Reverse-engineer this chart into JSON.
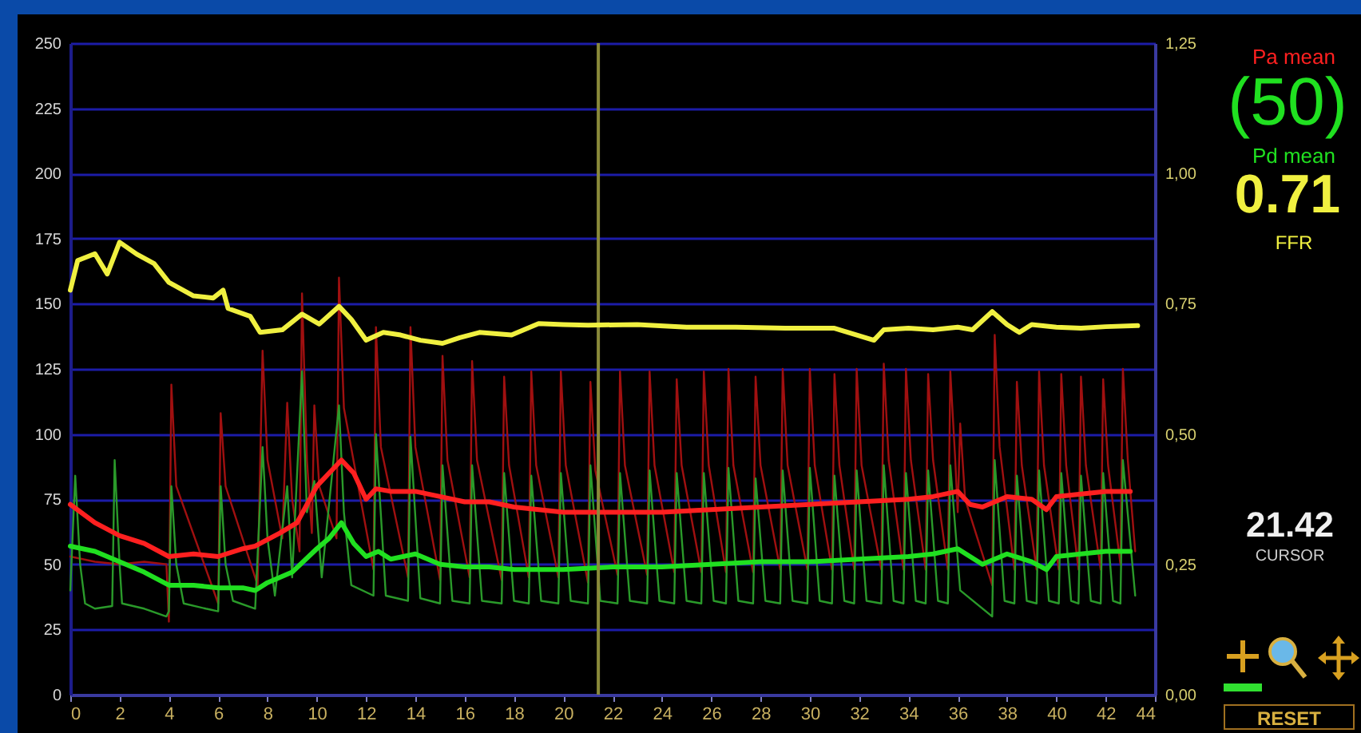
{
  "chart_data": {
    "type": "line",
    "xlim": [
      0,
      44
    ],
    "xticks": [
      0,
      2,
      4,
      6,
      8,
      10,
      12,
      14,
      16,
      18,
      20,
      22,
      24,
      26,
      28,
      30,
      32,
      34,
      36,
      38,
      40,
      42,
      44
    ],
    "ylim": [
      0,
      250
    ],
    "yticks": [
      0,
      25,
      50,
      75,
      100,
      125,
      150,
      175,
      200,
      225,
      250
    ],
    "y2lim": [
      0,
      1.25
    ],
    "y2ticks": [
      {
        "value": 0,
        "label": "0,00"
      },
      {
        "value": 0.25,
        "label": "0,25"
      },
      {
        "value": 0.5,
        "label": "0,50"
      },
      {
        "value": 0.75,
        "label": "0,75"
      },
      {
        "value": 1,
        "label": "1,00"
      },
      {
        "value": 1.25,
        "label": "1,25"
      }
    ],
    "grid": "y",
    "series": [
      {
        "color": "#a01010",
        "x": [
          0,
          1,
          2,
          3,
          3.9,
          4.0,
          4.1,
          4.3,
          6.0,
          6.1,
          6.3,
          7.6,
          7.8,
          8.0,
          8.6,
          8.8,
          9.0,
          9.3,
          9.4,
          9.6,
          9.8,
          9.9,
          10.1,
          10.8,
          10.9,
          11.1,
          12.3,
          12.4,
          12.6,
          13.7,
          13.8,
          14.0,
          15.0,
          15.1,
          15.3,
          16.2,
          16.3,
          16.5,
          17.5,
          17.6,
          17.8,
          18.6,
          18.7,
          18.9,
          19.8,
          19.9,
          20.1,
          21.0,
          21.1,
          21.3,
          22.2,
          22.3,
          22.5,
          23.4,
          23.5,
          23.7,
          24.5,
          24.6,
          24.8,
          25.6,
          25.7,
          25.9,
          26.6,
          26.7,
          26.9,
          27.7,
          27.8,
          28.0,
          28.8,
          28.9,
          29.1,
          29.9,
          30.0,
          30.2,
          30.9,
          31.0,
          31.2,
          31.8,
          31.9,
          32.1,
          32.9,
          33.0,
          33.2,
          33.8,
          33.9,
          34.1,
          34.7,
          34.8,
          35.0,
          35.6,
          35.7,
          35.9,
          36.0,
          36.1,
          36.3,
          37.4,
          37.5,
          37.7,
          38.3,
          38.4,
          38.6,
          39.2,
          39.3,
          39.5,
          40.1,
          40.2,
          40.4,
          40.9,
          41.0,
          41.2,
          41.8,
          41.9,
          42.1,
          42.6,
          42.7,
          42.9,
          43.2
        ],
        "values": [
          53,
          51,
          50,
          51,
          50,
          28,
          119,
          80,
          35,
          108,
          80,
          42,
          132,
          90,
          60,
          112,
          75,
          55,
          154,
          90,
          62,
          111,
          80,
          60,
          160,
          110,
          48,
          141,
          95,
          45,
          141,
          95,
          44,
          130,
          90,
          45,
          128,
          90,
          44,
          122,
          88,
          45,
          124,
          88,
          45,
          124,
          88,
          43,
          120,
          86,
          46,
          124,
          88,
          46,
          124,
          88,
          47,
          121,
          88,
          47,
          124,
          88,
          47,
          125,
          88,
          47,
          122,
          88,
          48,
          125,
          88,
          48,
          125,
          88,
          48,
          123,
          88,
          48,
          125,
          88,
          48,
          127,
          90,
          48,
          125,
          90,
          48,
          123,
          90,
          48,
          124,
          90,
          70,
          104,
          75,
          42,
          138,
          95,
          48,
          120,
          88,
          48,
          124,
          88,
          48,
          123,
          88,
          48,
          122,
          88,
          48,
          121,
          88,
          50,
          125,
          90,
          55
        ]
      },
      {
        "color": "#2a9a2a",
        "x": [
          0,
          0.2,
          0.4,
          0.6,
          1.0,
          1.7,
          1.8,
          2.0,
          2.1,
          3.0,
          3.9,
          4.0,
          4.1,
          4.3,
          4.6,
          5.5,
          6.0,
          6.1,
          6.3,
          6.6,
          7.5,
          7.8,
          8.0,
          8.3,
          8.8,
          9.0,
          9.4,
          9.6,
          9.9,
          10.2,
          10.9,
          11.1,
          11.4,
          12.3,
          12.4,
          12.8,
          13.7,
          13.8,
          14.2,
          15.0,
          15.1,
          15.5,
          16.2,
          16.3,
          16.7,
          17.5,
          17.6,
          18.0,
          18.6,
          18.7,
          19.1,
          19.8,
          19.9,
          20.3,
          21.0,
          21.1,
          21.5,
          22.2,
          22.3,
          22.7,
          23.4,
          23.5,
          23.9,
          24.5,
          24.6,
          25.0,
          25.6,
          25.7,
          26.1,
          26.6,
          26.7,
          27.1,
          27.7,
          27.8,
          28.2,
          28.8,
          28.9,
          29.3,
          29.9,
          30.0,
          30.4,
          30.9,
          31.0,
          31.4,
          31.8,
          31.9,
          32.3,
          32.9,
          33.0,
          33.4,
          33.8,
          33.9,
          34.3,
          34.7,
          34.8,
          35.2,
          35.6,
          35.7,
          36.1,
          37.4,
          37.5,
          37.9,
          38.3,
          38.4,
          38.8,
          39.2,
          39.3,
          39.7,
          40.1,
          40.2,
          40.6,
          40.9,
          41.0,
          41.4,
          41.8,
          41.9,
          42.3,
          42.6,
          42.7,
          43.2
        ],
        "values": [
          40,
          84,
          50,
          35,
          33,
          34,
          90,
          50,
          35,
          33,
          30,
          32,
          80,
          50,
          35,
          33,
          32,
          80,
          50,
          36,
          33,
          95,
          60,
          38,
          80,
          45,
          124,
          70,
          82,
          45,
          111,
          70,
          42,
          38,
          100,
          38,
          36,
          99,
          37,
          35,
          88,
          36,
          35,
          88,
          36,
          35,
          85,
          36,
          35,
          84,
          36,
          35,
          85,
          36,
          35,
          88,
          36,
          35,
          85,
          36,
          35,
          86,
          36,
          35,
          85,
          36,
          35,
          85,
          36,
          35,
          87,
          36,
          35,
          83,
          36,
          35,
          86,
          36,
          35,
          87,
          36,
          35,
          84,
          36,
          35,
          86,
          36,
          35,
          88,
          36,
          35,
          85,
          36,
          35,
          86,
          36,
          35,
          88,
          40,
          30,
          90,
          36,
          35,
          84,
          36,
          35,
          86,
          36,
          35,
          85,
          36,
          35,
          84,
          36,
          35,
          85,
          36,
          35,
          90,
          38
        ]
      },
      {
        "name": "Pa mean",
        "color": "#ff2020",
        "x": [
          0,
          1,
          2,
          3,
          4,
          5,
          6,
          7,
          7.5,
          8.5,
          9.2,
          10,
          10.5,
          11,
          11.5,
          12,
          12.4,
          13,
          14,
          15,
          16,
          17,
          18,
          19,
          20,
          22,
          24,
          26,
          28,
          30,
          32,
          34,
          35,
          36,
          36.5,
          37,
          38,
          39,
          39.6,
          40,
          41,
          42,
          43
        ],
        "values": [
          73,
          66,
          61,
          58,
          53,
          54,
          53,
          56,
          57,
          62,
          66,
          80,
          85,
          90,
          85,
          75,
          79,
          78,
          78,
          76,
          74,
          74,
          72,
          71,
          70,
          70,
          70,
          71,
          72,
          73,
          74,
          75,
          76,
          78,
          73,
          72,
          76,
          75,
          71,
          76,
          77,
          78,
          78
        ]
      },
      {
        "name": "Pd mean",
        "color": "#20e020",
        "x": [
          0,
          1,
          2,
          3,
          4,
          5,
          6,
          7,
          7.5,
          8,
          9,
          10,
          10.5,
          11,
          11.5,
          12,
          12.5,
          13,
          14,
          15,
          16,
          17,
          18,
          20,
          22,
          24,
          26,
          28,
          30,
          32,
          34,
          35,
          36,
          36.5,
          37,
          38,
          39,
          39.6,
          40,
          41,
          42,
          43
        ],
        "values": [
          57,
          55,
          51,
          47,
          42,
          42,
          41,
          41,
          40,
          43,
          47,
          56,
          60,
          66,
          58,
          53,
          55,
          52,
          54,
          50,
          49,
          49,
          48,
          48,
          49,
          49,
          50,
          51,
          51,
          52,
          53,
          54,
          56,
          53,
          50,
          54,
          51,
          48,
          53,
          54,
          55,
          55
        ]
      },
      {
        "name": "FFR",
        "color": "#f0f040",
        "axis": "y2",
        "x": [
          0,
          0.3,
          1,
          1.5,
          2,
          2.7,
          3.4,
          4,
          5,
          5.8,
          6.2,
          6.4,
          7.3,
          7.7,
          8.6,
          9.4,
          10.1,
          10.9,
          11.4,
          12,
          12.7,
          13.4,
          14.2,
          15.1,
          15.8,
          16.6,
          17.9,
          19,
          20,
          21,
          23,
          25,
          27,
          29,
          31,
          32.6,
          33,
          34,
          35,
          36,
          36.6,
          37.4,
          38,
          38.5,
          39,
          40,
          41,
          42,
          43.3
        ],
        "values": [
          0.776,
          0.833,
          0.846,
          0.807,
          0.868,
          0.845,
          0.827,
          0.791,
          0.765,
          0.761,
          0.776,
          0.741,
          0.726,
          0.695,
          0.7,
          0.73,
          0.711,
          0.745,
          0.72,
          0.68,
          0.695,
          0.69,
          0.68,
          0.674,
          0.685,
          0.695,
          0.69,
          0.712,
          0.71,
          0.709,
          0.71,
          0.705,
          0.705,
          0.703,
          0.703,
          0.68,
          0.7,
          0.703,
          0.7,
          0.705,
          0.7,
          0.735,
          0.71,
          0.695,
          0.71,
          0.705,
          0.703,
          0.706,
          0.708
        ]
      }
    ],
    "ref_lines": [
      {
        "axis": "x",
        "value": 21.42,
        "color": "#8a8a3a"
      }
    ],
    "annotations": [
      "(50)",
      "0.71",
      "21.42",
      "CURSOR",
      "RESET"
    ]
  }
}
